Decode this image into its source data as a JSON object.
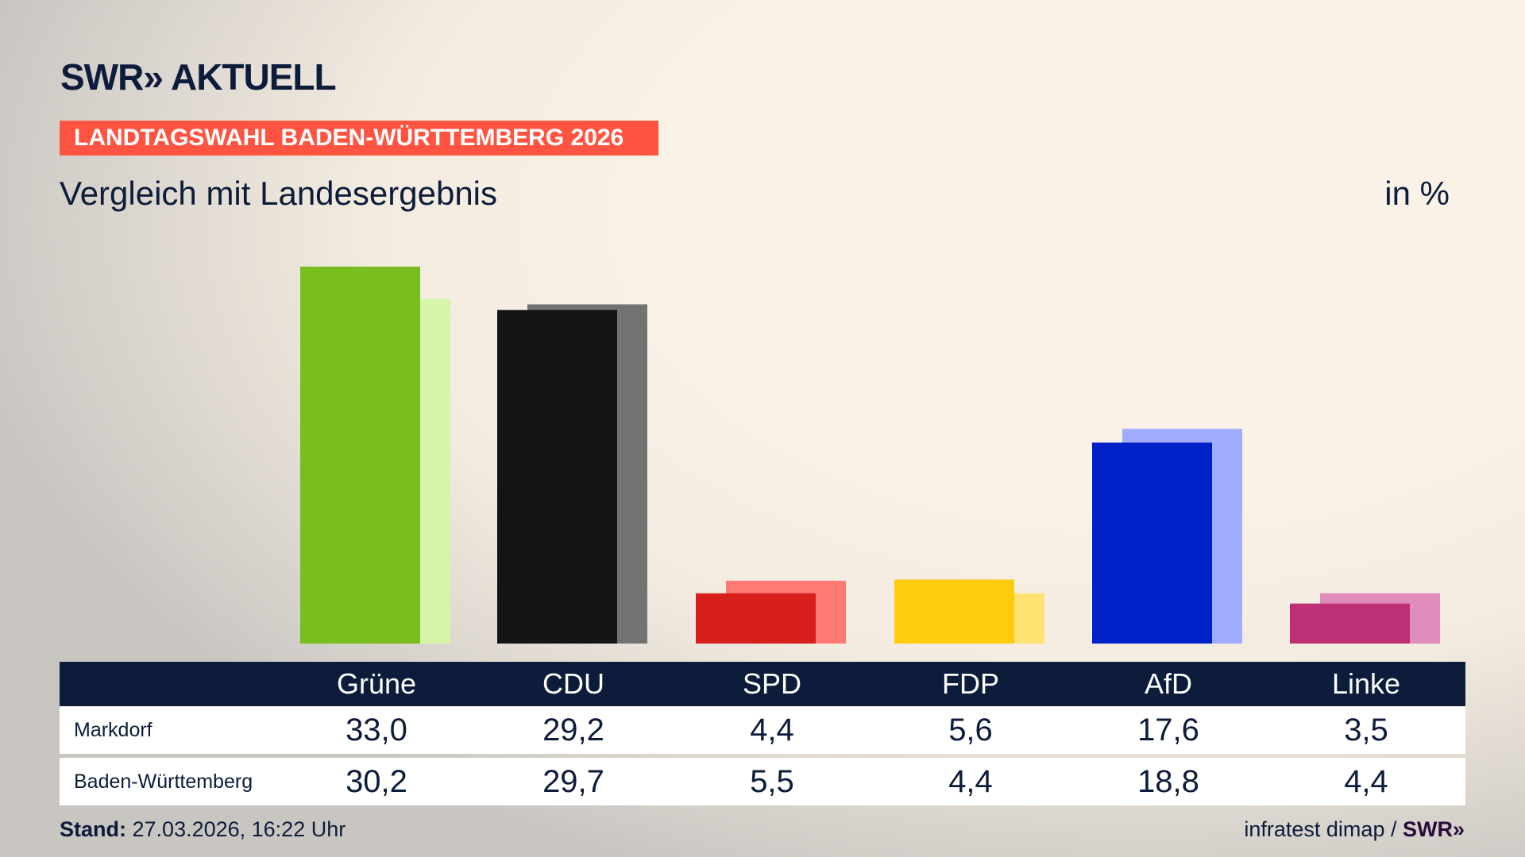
{
  "header": {
    "logo": "SWR» AKTUELL",
    "banner": "LANDTAGSWAHL BADEN-WÜRTTEMBERG 2026",
    "subtitle": "Vergleich mit Landesergebnis",
    "unit": "in %"
  },
  "chart_data": {
    "type": "bar",
    "categories": [
      "Grüne",
      "CDU",
      "SPD",
      "FDP",
      "AfD",
      "Linke"
    ],
    "series": [
      {
        "name": "Markdorf",
        "values": [
          33.0,
          29.2,
          4.4,
          5.6,
          17.6,
          3.5
        ]
      },
      {
        "name": "Baden-Württemberg",
        "values": [
          30.2,
          29.7,
          5.5,
          4.4,
          18.8,
          4.4
        ]
      }
    ],
    "display_values": {
      "Markdorf": [
        "33,0",
        "29,2",
        "4,4",
        "5,6",
        "17,6",
        "3,5"
      ],
      "Baden-Württemberg": [
        "30,2",
        "29,7",
        "5,5",
        "4,4",
        "18,8",
        "4,4"
      ]
    },
    "colors": {
      "Markdorf": [
        "#78be1e",
        "#141414",
        "#d7201e",
        "#ffcc0d",
        "#0021c8",
        "#be3075"
      ],
      "Baden-Württemberg": [
        "#d7f5aa",
        "#737373",
        "#ff7a74",
        "#ffe272",
        "#a0adff",
        "#e08dbb"
      ]
    },
    "grid": false,
    "ylim": [
      0,
      33
    ]
  },
  "footer": {
    "stand_label": "Stand:",
    "stand_value": "27.03.2026, 16:22 Uhr",
    "source": "infratest dimap /",
    "source_logo": "SWR»"
  }
}
